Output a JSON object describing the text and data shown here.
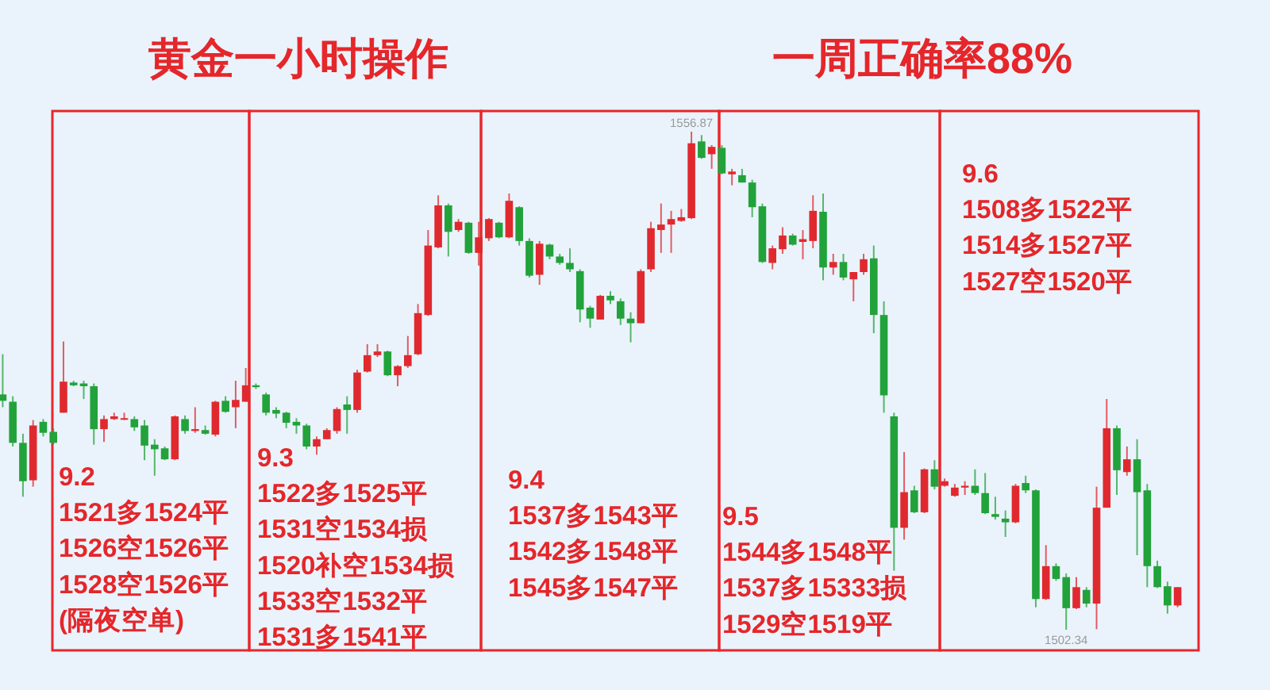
{
  "chart_data": {
    "type": "candlestick",
    "title": "黄金一小时操作",
    "subtitle": "一周正确率88%",
    "categories": [
      null,
      null,
      null,
      null,
      null,
      null,
      null,
      null,
      null,
      null,
      null,
      null,
      null,
      null,
      null,
      null,
      null,
      null,
      null,
      null,
      null,
      null,
      null,
      null,
      null,
      null,
      null,
      null,
      null,
      null,
      null,
      null,
      null,
      null,
      null,
      null,
      null,
      null,
      null,
      null,
      null,
      null,
      null,
      null,
      null,
      null,
      null,
      null,
      null,
      null,
      null,
      null,
      null,
      null,
      null,
      null,
      null,
      null,
      null,
      null,
      null,
      null,
      null,
      null,
      null,
      null,
      null,
      null,
      null,
      null,
      null,
      null,
      null,
      null,
      null,
      null,
      null,
      null,
      null,
      null,
      null,
      null,
      null,
      null,
      null,
      null,
      null,
      null,
      null,
      null,
      null,
      null,
      null,
      null,
      null,
      null,
      null,
      null,
      null,
      null,
      null,
      null,
      null,
      null,
      null,
      null,
      null,
      null,
      null,
      null,
      null,
      null,
      null,
      null,
      null,
      null,
      null
    ],
    "ohlc": [
      [
        1528.1,
        1532.5,
        1526.7,
        1527.4
      ],
      [
        1527.3,
        1527.9,
        1522.4,
        1522.8
      ],
      [
        1522.8,
        1523.8,
        1516.9,
        1518.6
      ],
      [
        1518.7,
        1525.3,
        1518.0,
        1524.7
      ],
      [
        1525.1,
        1525.4,
        1523.5,
        1523.9
      ],
      [
        1524.0,
        1524.4,
        1522.6,
        1522.8
      ],
      [
        1526.1,
        1533.9,
        1526.1,
        1529.5
      ],
      [
        1529.4,
        1529.6,
        1529.0,
        1529.1
      ],
      [
        1529.3,
        1529.6,
        1527.6,
        1529.0
      ],
      [
        1529.0,
        1529.3,
        1522.6,
        1524.3
      ],
      [
        1524.3,
        1525.8,
        1522.9,
        1525.4
      ],
      [
        1525.4,
        1526.1,
        1525.3,
        1525.7
      ],
      [
        1525.4,
        1526.1,
        1525.3,
        1525.5
      ],
      [
        1525.4,
        1525.7,
        1524.1,
        1524.5
      ],
      [
        1524.7,
        1525.3,
        1520.9,
        1522.5
      ],
      [
        1522.6,
        1523.2,
        1519.2,
        1522.1
      ],
      [
        1522.2,
        1522.4,
        1520.9,
        1521.0
      ],
      [
        1521.0,
        1525.8,
        1520.9,
        1525.7
      ],
      [
        1525.4,
        1525.8,
        1523.8,
        1524.1
      ],
      [
        1524.1,
        1526.7,
        1523.9,
        1524.3
      ],
      [
        1524.2,
        1524.7,
        1523.7,
        1523.8
      ],
      [
        1523.7,
        1527.4,
        1523.5,
        1527.3
      ],
      [
        1527.4,
        1527.9,
        1526.1,
        1526.2
      ],
      [
        1526.7,
        1529.6,
        1524.4,
        1527.5
      ],
      [
        1527.3,
        1531.0,
        1527.3,
        1529.1
      ],
      [
        1529.1,
        1529.3,
        1528.7,
        1528.9
      ],
      [
        1528.1,
        1528.3,
        1525.8,
        1526.1
      ],
      [
        1526.4,
        1526.7,
        1525.5,
        1526.0
      ],
      [
        1526.1,
        1526.2,
        1524.4,
        1525.0
      ],
      [
        1525.1,
        1525.5,
        1523.8,
        1524.7
      ],
      [
        1524.7,
        1524.9,
        1522.1,
        1522.4
      ],
      [
        1522.4,
        1523.5,
        1521.5,
        1523.2
      ],
      [
        1523.2,
        1524.4,
        1523.2,
        1524.2
      ],
      [
        1524.1,
        1526.7,
        1523.8,
        1526.5
      ],
      [
        1527.0,
        1527.9,
        1523.8,
        1526.4
      ],
      [
        1526.4,
        1530.8,
        1526.1,
        1530.5
      ],
      [
        1530.6,
        1533.6,
        1530.5,
        1532.4
      ],
      [
        1532.4,
        1533.6,
        1532.2,
        1532.8
      ],
      [
        1532.8,
        1532.9,
        1530.1,
        1530.2
      ],
      [
        1530.2,
        1531.3,
        1529.0,
        1531.2
      ],
      [
        1531.2,
        1534.5,
        1531.0,
        1532.4
      ],
      [
        1532.5,
        1538.0,
        1532.4,
        1537.0
      ],
      [
        1536.8,
        1546.1,
        1536.7,
        1544.4
      ],
      [
        1544.2,
        1549.9,
        1544.1,
        1548.8
      ],
      [
        1548.8,
        1549.0,
        1543.2,
        1545.9
      ],
      [
        1546.1,
        1547.3,
        1545.9,
        1547.0
      ],
      [
        1546.9,
        1547.0,
        1543.5,
        1543.6
      ],
      [
        1543.6,
        1547.0,
        1542.2,
        1545.3
      ],
      [
        1545.2,
        1547.4,
        1544.9,
        1547.3
      ],
      [
        1546.9,
        1547.0,
        1545.2,
        1545.3
      ],
      [
        1545.3,
        1550.1,
        1545.2,
        1549.3
      ],
      [
        1548.6,
        1548.7,
        1544.4,
        1544.9
      ],
      [
        1544.9,
        1545.2,
        1540.9,
        1541.1
      ],
      [
        1541.2,
        1544.9,
        1540.1,
        1544.6
      ],
      [
        1544.5,
        1544.6,
        1542.9,
        1543.2
      ],
      [
        1543.2,
        1543.5,
        1542.3,
        1542.5
      ],
      [
        1542.5,
        1544.1,
        1541.5,
        1541.8
      ],
      [
        1541.6,
        1541.8,
        1536.0,
        1537.4
      ],
      [
        1537.6,
        1537.8,
        1535.4,
        1536.4
      ],
      [
        1536.3,
        1539.0,
        1536.3,
        1538.9
      ],
      [
        1538.9,
        1539.4,
        1538.0,
        1538.4
      ],
      [
        1538.3,
        1538.6,
        1535.7,
        1536.4
      ],
      [
        1536.4,
        1537.1,
        1533.8,
        1535.9
      ],
      [
        1535.9,
        1541.8,
        1535.9,
        1541.6
      ],
      [
        1541.8,
        1547.0,
        1541.5,
        1546.3
      ],
      [
        1546.1,
        1549.0,
        1543.6,
        1546.7
      ],
      [
        1546.7,
        1548.2,
        1543.6,
        1547.3
      ],
      [
        1547.1,
        1548.4,
        1547.0,
        1547.5
      ],
      [
        1547.4,
        1556.87,
        1547.3,
        1555.6
      ],
      [
        1555.8,
        1556.5,
        1553.9,
        1554.0
      ],
      [
        1554.4,
        1555.4,
        1552.8,
        1555.2
      ],
      [
        1555.1,
        1555.4,
        1552.2,
        1552.3
      ],
      [
        1552.2,
        1552.8,
        1551.0,
        1552.5
      ],
      [
        1552.1,
        1552.8,
        1551.3,
        1551.3
      ],
      [
        1551.3,
        1551.6,
        1547.5,
        1548.6
      ],
      [
        1548.7,
        1549.0,
        1542.5,
        1542.6
      ],
      [
        1542.5,
        1544.4,
        1541.8,
        1544.1
      ],
      [
        1544.0,
        1546.4,
        1543.5,
        1545.5
      ],
      [
        1545.5,
        1545.7,
        1544.4,
        1544.5
      ],
      [
        1544.8,
        1546.1,
        1542.9,
        1545.1
      ],
      [
        1544.9,
        1549.9,
        1544.1,
        1548.2
      ],
      [
        1548.1,
        1550.1,
        1540.6,
        1542.0
      ],
      [
        1542.0,
        1543.5,
        1541.2,
        1542.6
      ],
      [
        1542.6,
        1543.5,
        1540.6,
        1540.9
      ],
      [
        1540.7,
        1541.5,
        1538.3,
        1541.5
      ],
      [
        1541.5,
        1543.5,
        1541.2,
        1542.9
      ],
      [
        1543.0,
        1544.4,
        1534.8,
        1536.8
      ],
      [
        1536.8,
        1538.3,
        1526.1,
        1528.0
      ],
      [
        1525.7,
        1526.1,
        1508.8,
        1513.5
      ],
      [
        1513.5,
        1521.8,
        1512.2,
        1517.4
      ],
      [
        1517.6,
        1518.1,
        1515.1,
        1515.2
      ],
      [
        1515.2,
        1520.0,
        1515.1,
        1519.9
      ],
      [
        1519.9,
        1520.9,
        1517.7,
        1518.0
      ],
      [
        1518.1,
        1518.9,
        1518.0,
        1518.6
      ],
      [
        1517.0,
        1518.3,
        1516.9,
        1517.9
      ],
      [
        1517.9,
        1518.6,
        1517.1,
        1518.1
      ],
      [
        1518.1,
        1519.9,
        1517.1,
        1517.3
      ],
      [
        1517.3,
        1519.5,
        1515.0,
        1515.1
      ],
      [
        1515.0,
        1516.9,
        1514.4,
        1514.7
      ],
      [
        1514.5,
        1515.4,
        1512.5,
        1514.1
      ],
      [
        1514.1,
        1518.3,
        1514.0,
        1518.1
      ],
      [
        1518.4,
        1519.2,
        1517.3,
        1517.6
      ],
      [
        1517.6,
        1517.7,
        1504.8,
        1505.7
      ],
      [
        1505.7,
        1511.6,
        1505.6,
        1509.3
      ],
      [
        1509.3,
        1509.6,
        1507.7,
        1507.9
      ],
      [
        1508.1,
        1508.5,
        1502.34,
        1504.7
      ],
      [
        1504.7,
        1508.1,
        1504.6,
        1507.0
      ],
      [
        1506.7,
        1507.0,
        1504.8,
        1505.2
      ],
      [
        1505.2,
        1518.0,
        1502.4,
        1515.7
      ],
      [
        1515.7,
        1527.6,
        1515.7,
        1524.4
      ],
      [
        1524.4,
        1524.7,
        1517.1,
        1519.8
      ],
      [
        1519.6,
        1522.4,
        1519.2,
        1521.0
      ],
      [
        1521.0,
        1523.2,
        1510.5,
        1517.4
      ],
      [
        1517.6,
        1518.3,
        1507.0,
        1509.3
      ],
      [
        1509.3,
        1509.9,
        1506.9,
        1507.0
      ],
      [
        1507.1,
        1507.6,
        1504.1,
        1505.0
      ],
      [
        1505.0,
        1507.0,
        1504.8,
        1507.0
      ]
    ],
    "colors": [
      "#22a23a",
      "#22a23a",
      "#22a23a",
      "#e0292f",
      "#22a23a",
      "#22a23a",
      "#e0292f",
      "#22a23a",
      "#22a23a",
      "#22a23a",
      "#e0292f",
      "#e0292f",
      "#e0292f",
      "#22a23a",
      "#22a23a",
      "#22a23a",
      "#22a23a",
      "#e0292f",
      "#22a23a",
      "#e0292f",
      "#22a23a",
      "#e0292f",
      "#22a23a",
      "#e0292f",
      "#e0292f",
      "#22a23a",
      "#22a23a",
      "#22a23a",
      "#22a23a",
      "#22a23a",
      "#22a23a",
      "#e0292f",
      "#e0292f",
      "#e0292f",
      "#22a23a",
      "#e0292f",
      "#e0292f",
      "#e0292f",
      "#22a23a",
      "#e0292f",
      "#e0292f",
      "#e0292f",
      "#e0292f",
      "#e0292f",
      "#22a23a",
      "#e0292f",
      "#22a23a",
      "#e0292f",
      "#e0292f",
      "#22a23a",
      "#e0292f",
      "#22a23a",
      "#22a23a",
      "#e0292f",
      "#22a23a",
      "#22a23a",
      "#22a23a",
      "#22a23a",
      "#22a23a",
      "#e0292f",
      "#22a23a",
      "#22a23a",
      "#22a23a",
      "#e0292f",
      "#e0292f",
      "#e0292f",
      "#e0292f",
      "#e0292f",
      "#e0292f",
      "#22a23a",
      "#e0292f",
      "#22a23a",
      "#e0292f",
      "#22a23a",
      "#22a23a",
      "#22a23a",
      "#e0292f",
      "#e0292f",
      "#22a23a",
      "#e0292f",
      "#e0292f",
      "#22a23a",
      "#e0292f",
      "#22a23a",
      "#e0292f",
      "#e0292f",
      "#22a23a",
      "#22a23a",
      "#22a23a",
      "#e0292f",
      "#22a23a",
      "#e0292f",
      "#22a23a",
      "#e0292f",
      "#e0292f",
      "#e0292f",
      "#22a23a",
      "#22a23a",
      "#22a23a",
      "#22a23a",
      "#e0292f",
      "#22a23a",
      "#22a23a",
      "#e0292f",
      "#22a23a",
      "#22a23a",
      "#e0292f",
      "#22a23a",
      "#e0292f",
      "#e0292f",
      "#22a23a",
      "#e0292f",
      "#22a23a",
      "#22a23a",
      "#22a23a",
      "#22a23a",
      "#e0292f"
    ],
    "annotations": [
      "9.2\n1521多1524平\n1526空1526平\n1528空1526平\n(隔夜空单)",
      "9.3\n1522多1525平\n1531空1534损\n1520补空1534损\n1533空1532平\n1531多1541平",
      "9.4\n1537多1543平\n1542多1548平\n1545多1547平",
      "9.5\n1544多1548平\n1537多15333损\n1529空1519平",
      "9.6\n1508多1522平\n1514多1527平\n1527空1520平",
      {
        "text": "1556.87",
        "y": 1556.87
      },
      {
        "text": "1502.34",
        "y": 1502.34
      }
    ]
  }
}
